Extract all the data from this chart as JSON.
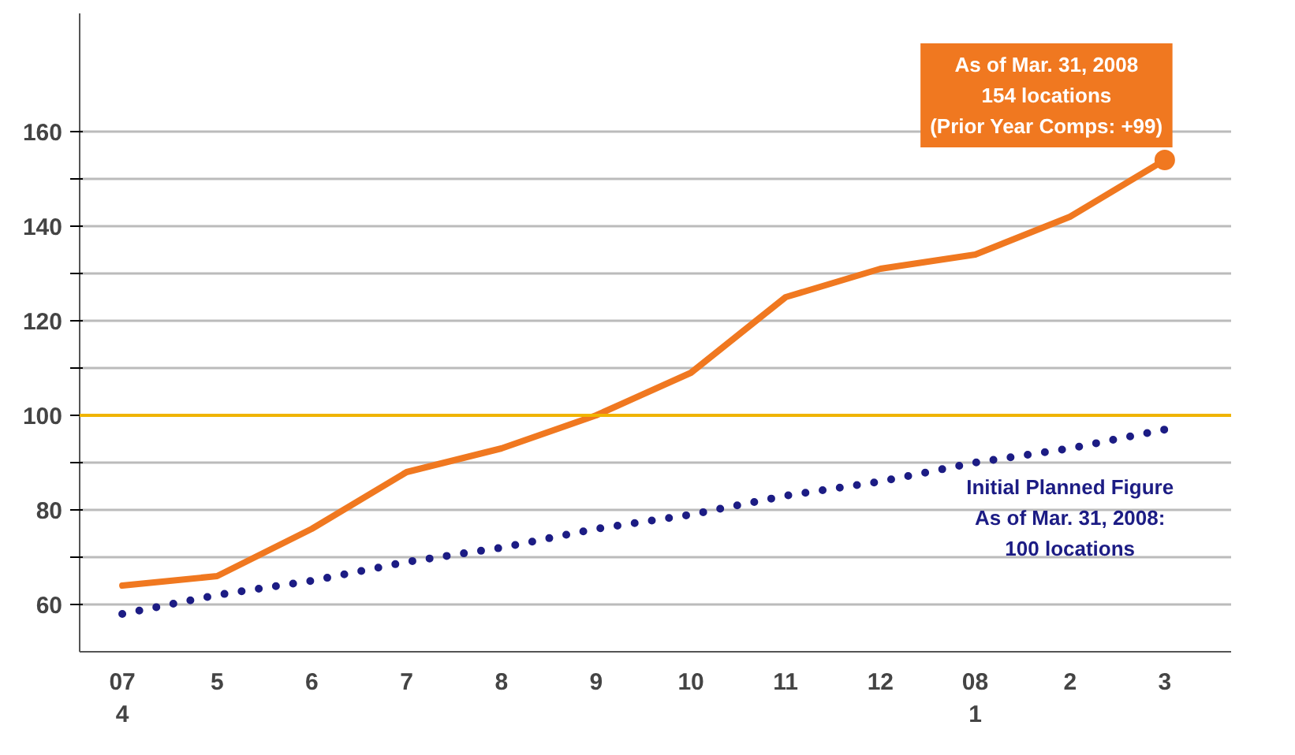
{
  "chart_data": {
    "type": "line",
    "categories": [
      "07\n4",
      "5",
      "6",
      "7",
      "8",
      "9",
      "10",
      "11",
      "12",
      "08\n1",
      "2",
      "3"
    ],
    "series": [
      {
        "color": "#f07820",
        "line_style": "solid",
        "values": [
          64,
          66,
          76,
          88,
          93,
          100,
          109,
          125,
          131,
          134,
          142,
          154
        ]
      },
      {
        "color": "#1c1c84",
        "line_style": "dotted",
        "values": [
          58,
          62,
          65,
          69,
          72,
          76,
          79,
          83,
          86,
          90,
          93,
          97
        ]
      }
    ],
    "ylim": [
      50,
      185
    ],
    "yticks": [
      60,
      {
        "value": 70,
        "label": null
      },
      80,
      {
        "value": 90,
        "label": null
      },
      100,
      {
        "value": 110,
        "label": null
      },
      120,
      {
        "value": 130,
        "label": null
      },
      140,
      {
        "value": 150,
        "label": null
      },
      160
    ],
    "ref_lines": [
      {
        "axis": "y",
        "value": 100,
        "color": "#f0b400"
      }
    ],
    "annotations": [
      {
        "text": "As of Mar. 31, 2008\n154 locations\n(Prior Year Comps: +99)",
        "x": "3",
        "y": 154
      },
      "Initial Planned Figure\nAs of Mar. 31, 2008:\n100 locations"
    ],
    "grid": "y"
  }
}
